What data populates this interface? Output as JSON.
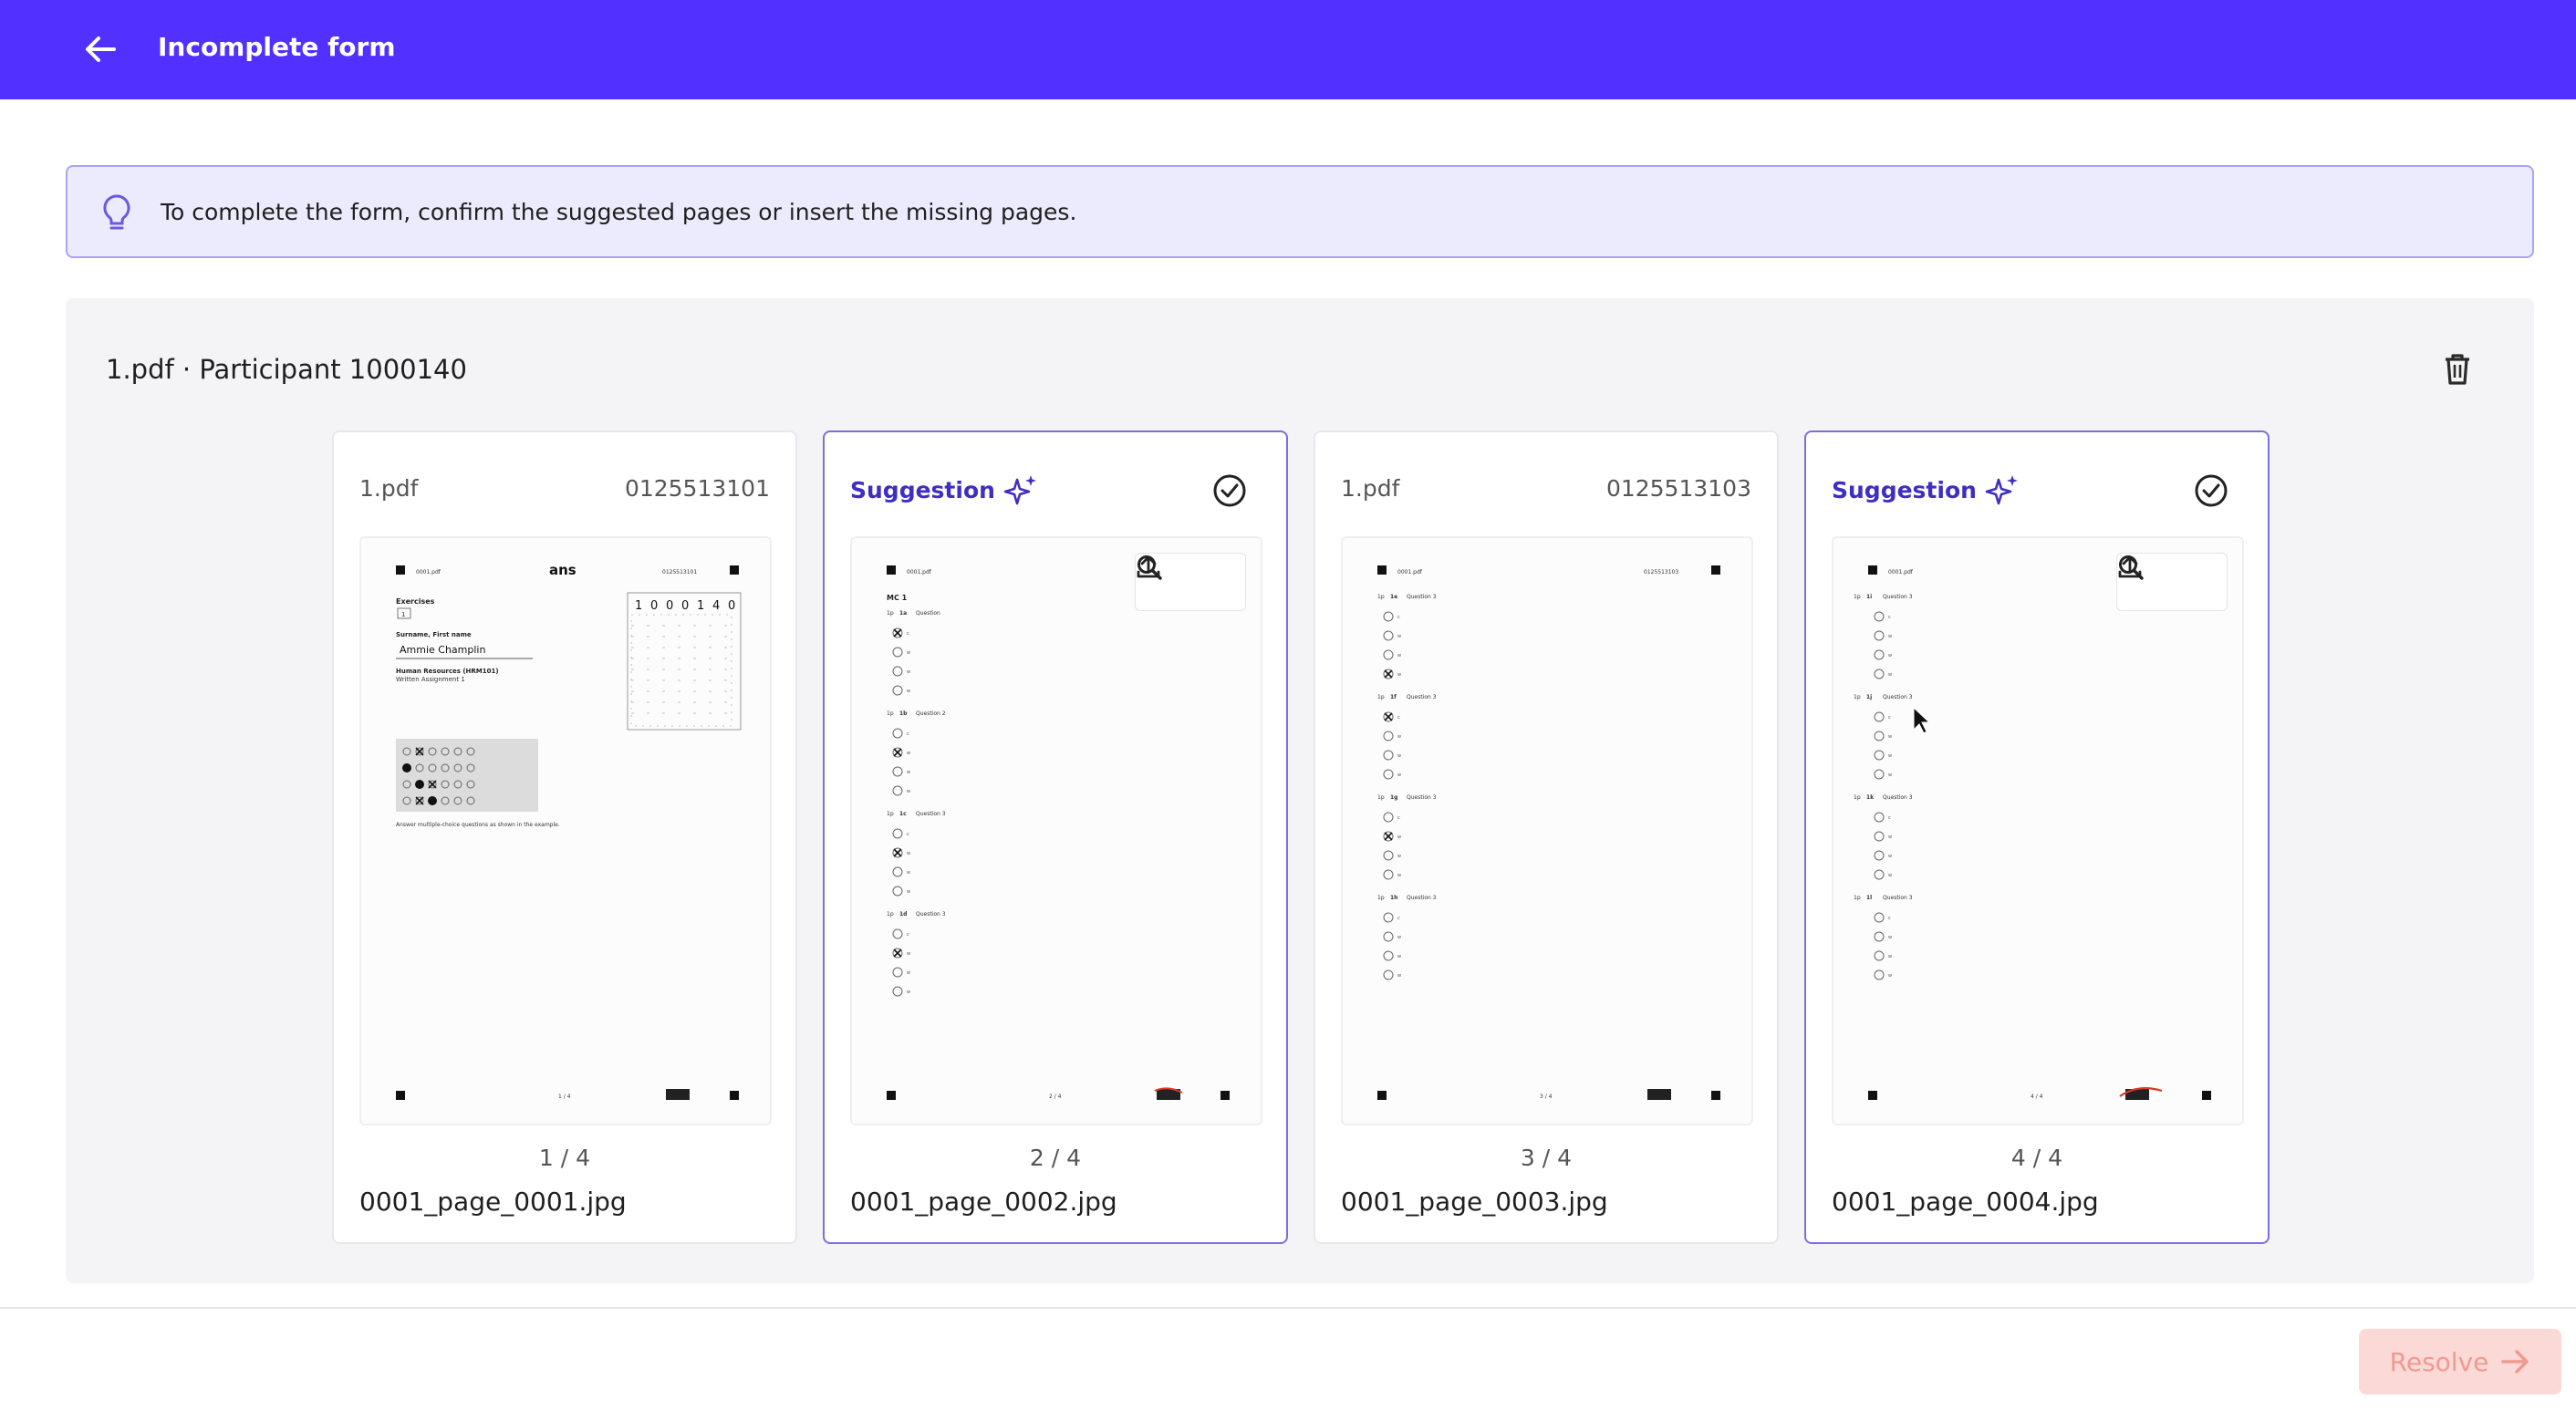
{
  "header": {
    "title": "Incomplete form",
    "back_icon": "arrow-left-icon",
    "background": "#5230ff"
  },
  "banner": {
    "text": "To complete the form, confirm the suggested pages or insert the missing pages.",
    "icon": "lightbulb-icon"
  },
  "panel": {
    "title": "1.pdf · Participant 1000140",
    "delete_icon": "trash-icon"
  },
  "cards": [
    {
      "type": "page",
      "source": "1.pdf",
      "code": "0125513101",
      "page_label": "1 / 4",
      "file_name": "0001_page_0001.jpg"
    },
    {
      "type": "suggestion",
      "label": "Suggestion",
      "page_label": "2 / 4",
      "file_name": "0001_page_0002.jpg"
    },
    {
      "type": "page",
      "source": "1.pdf",
      "code": "0125513103",
      "page_label": "3 / 4",
      "file_name": "0001_page_0003.jpg"
    },
    {
      "type": "suggestion",
      "label": "Suggestion",
      "page_label": "4 / 4",
      "file_name": "0001_page_0004.jpg"
    }
  ],
  "page1": {
    "top_left": "0001.pdf",
    "logo": "ans",
    "top_right": "0125513101",
    "section": "Exercises",
    "name_label": "Surname, First name",
    "name_value": "Ammie Champlin",
    "course": "Human Resources (HRM101)",
    "assignment": "Written Assignment 1",
    "digits": [
      "1",
      "0",
      "0",
      "0",
      "1",
      "4",
      "0"
    ],
    "example_text": "Answer multiple-choice questions as shown in the example.",
    "footer_page": "1 / 4"
  },
  "page2": {
    "top_left": "0001.pdf",
    "heading": "MC 1",
    "questions": [
      {
        "num": "1a",
        "label": "Question"
      },
      {
        "num": "1b",
        "label": "Question 2"
      },
      {
        "num": "1c",
        "label": "Question 3"
      },
      {
        "num": "1d",
        "label": "Question 3"
      }
    ],
    "footer_page": "2 / 4"
  },
  "page3": {
    "top_left": "0001.pdf",
    "top_right": "0125513103",
    "questions": [
      {
        "num": "1e",
        "label": "Question 3"
      },
      {
        "num": "1f",
        "label": "Question 3"
      },
      {
        "num": "1g",
        "label": "Question 3"
      },
      {
        "num": "1h",
        "label": "Question 3"
      }
    ],
    "footer_page": "3 / 4"
  },
  "page4": {
    "top_left": "0001.pdf",
    "questions": [
      {
        "num": "1i",
        "label": "Question 3"
      },
      {
        "num": "1j",
        "label": "Question 3"
      },
      {
        "num": "1k",
        "label": "Question 3"
      },
      {
        "num": "1l",
        "label": "Question 3"
      }
    ],
    "footer_page": "4 / 4"
  },
  "options": [
    "c",
    "w",
    "w",
    "w"
  ],
  "icons": {
    "suggestion": "sparkles-icon",
    "confirm": "check-circle-icon",
    "zoom": "magnifier-icon",
    "upload": "upload-icon"
  },
  "footer": {
    "resolve_label": "Resolve",
    "resolve_icon": "arrow-right-icon"
  }
}
